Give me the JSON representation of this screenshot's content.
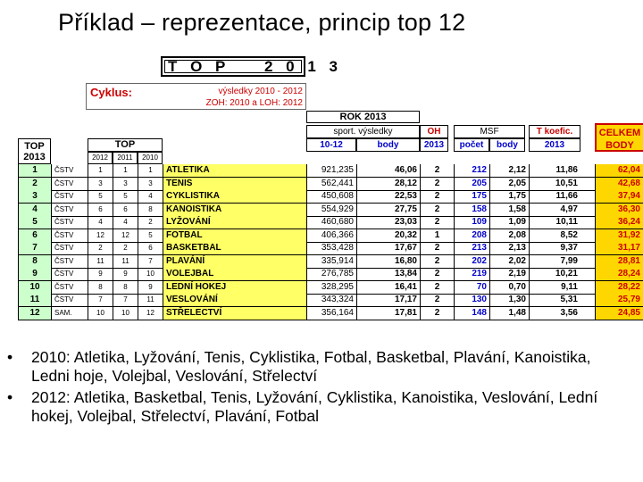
{
  "slide": {
    "title": "Příklad – reprezentace, princip top 12"
  },
  "table": {
    "top_banner": "T O P    2 0 1 3",
    "cyklus_label": "Cyklus:",
    "cyklus_line1": "výsledky 2010 - 2012",
    "cyklus_line2": "ZOH: 2010  a  LOH: 2012",
    "rok_header": "ROK 2013",
    "sport_vysledky": "sport. výsledky",
    "sub_1012": "10-12",
    "sub_body": "body",
    "oh_header": "OH",
    "oh_sub": "2013",
    "msf_header": "MSF",
    "msf_pocet": "počet",
    "msf_body": "body",
    "tkoef_header": "T koefic.",
    "tkoef_sub": "2013",
    "celkem_header": "CELKEM",
    "celkem_sub": "BODY",
    "top2013_header": "TOP\n2013",
    "top_header": "TOP",
    "year_cols": [
      "2012",
      "2011",
      "2010"
    ],
    "rows": [
      {
        "rank": "1",
        "org": "ČSTV",
        "y2012": "1",
        "y2011": "1",
        "y2010": "1",
        "sport": "ATLETIKA",
        "vysl": "921,235",
        "body": "46,06",
        "oh": "2",
        "pocet": "212",
        "msfbody": "2,12",
        "koef": "11,86",
        "celkem": "62,04"
      },
      {
        "rank": "2",
        "org": "ČSTV",
        "y2012": "3",
        "y2011": "3",
        "y2010": "3",
        "sport": "TENIS",
        "vysl": "562,441",
        "body": "28,12",
        "oh": "2",
        "pocet": "205",
        "msfbody": "2,05",
        "koef": "10,51",
        "celkem": "42,68"
      },
      {
        "rank": "3",
        "org": "ČSTV",
        "y2012": "5",
        "y2011": "5",
        "y2010": "4",
        "sport": "CYKLISTIKA",
        "vysl": "450,608",
        "body": "22,53",
        "oh": "2",
        "pocet": "175",
        "msfbody": "1,75",
        "koef": "11,66",
        "celkem": "37,94"
      },
      {
        "rank": "4",
        "org": "ČSTV",
        "y2012": "6",
        "y2011": "6",
        "y2010": "8",
        "sport": "KANOISTIKA",
        "vysl": "554,929",
        "body": "27,75",
        "oh": "2",
        "pocet": "158",
        "msfbody": "1,58",
        "koef": "4,97",
        "celkem": "36,30"
      },
      {
        "rank": "5",
        "org": "ČSTV",
        "y2012": "4",
        "y2011": "4",
        "y2010": "2",
        "sport": "LYŽOVÁNÍ",
        "vysl": "460,680",
        "body": "23,03",
        "oh": "2",
        "pocet": "109",
        "msfbody": "1,09",
        "koef": "10,11",
        "celkem": "36,24"
      },
      {
        "rank": "6",
        "org": "ČSTV",
        "y2012": "12",
        "y2011": "12",
        "y2010": "5",
        "sport": "FOTBAL",
        "vysl": "406,366",
        "body": "20,32",
        "oh": "1",
        "pocet": "208",
        "msfbody": "2,08",
        "koef": "8,52",
        "celkem": "31,92"
      },
      {
        "rank": "7",
        "org": "ČSTV",
        "y2012": "2",
        "y2011": "2",
        "y2010": "6",
        "sport": "BASKETBAL",
        "vysl": "353,428",
        "body": "17,67",
        "oh": "2",
        "pocet": "213",
        "msfbody": "2,13",
        "koef": "9,37",
        "celkem": "31,17"
      },
      {
        "rank": "8",
        "org": "ČSTV",
        "y2012": "11",
        "y2011": "11",
        "y2010": "7",
        "sport": "PLAVÁNÍ",
        "vysl": "335,914",
        "body": "16,80",
        "oh": "2",
        "pocet": "202",
        "msfbody": "2,02",
        "koef": "7,99",
        "celkem": "28,81"
      },
      {
        "rank": "9",
        "org": "ČSTV",
        "y2012": "9",
        "y2011": "9",
        "y2010": "10",
        "sport": "VOLEJBAL",
        "vysl": "276,785",
        "body": "13,84",
        "oh": "2",
        "pocet": "219",
        "msfbody": "2,19",
        "koef": "10,21",
        "celkem": "28,24"
      },
      {
        "rank": "10",
        "org": "ČSTV",
        "y2012": "8",
        "y2011": "8",
        "y2010": "9",
        "sport": "LEDNÍ HOKEJ",
        "vysl": "328,295",
        "body": "16,41",
        "oh": "2",
        "pocet": "70",
        "msfbody": "0,70",
        "koef": "9,11",
        "celkem": "28,22"
      },
      {
        "rank": "11",
        "org": "ČSTV",
        "y2012": "7",
        "y2011": "7",
        "y2010": "11",
        "sport": "VESLOVÁNÍ",
        "vysl": "343,324",
        "body": "17,17",
        "oh": "2",
        "pocet": "130",
        "msfbody": "1,30",
        "koef": "5,31",
        "celkem": "25,79"
      },
      {
        "rank": "12",
        "org": "SAM.",
        "y2012": "10",
        "y2011": "10",
        "y2010": "12",
        "sport": "STŘELECTVÍ",
        "vysl": "356,164",
        "body": "17,81",
        "oh": "2",
        "pocet": "148",
        "msfbody": "1,48",
        "koef": "3,56",
        "celkem": "24,85"
      }
    ]
  },
  "bullets": [
    "2010: Atletika, Lyžování, Tenis, Cyklistika, Fotbal, Basketbal, Plavání, Kanoistika, Ledni hoje, Volejbal, Veslování, Střelectví",
    "2012: Atletika, Basketbal, Tenis, Lyžování, Cyklistika, Kanoistika, Veslování, Lední hokej, Volejbal, Střelectví, Plavání, Fotbal"
  ],
  "colors": {
    "rank_fill": "#ccffcc",
    "sport_fill": "#ffff66",
    "celkem_fill": "#ffd700",
    "red": "#cc0000",
    "blue": "#0000cc"
  }
}
